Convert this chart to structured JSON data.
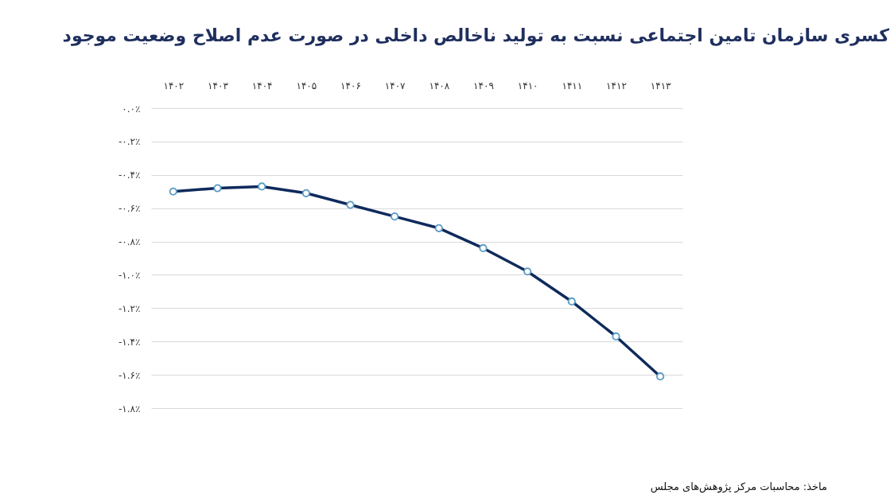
{
  "chart_data": {
    "type": "line",
    "title": "کسری سازمان تامین اجتماعی نسبت به تولید ناخالص داخلی در صورت عدم اصلاح وضعیت موجود",
    "categories": [
      "۱۴۰۲",
      "۱۴۰۳",
      "۱۴۰۴",
      "۱۴۰۵",
      "۱۴۰۶",
      "۱۴۰۷",
      "۱۴۰۸",
      "۱۴۰۹",
      "۱۴۱۰",
      "۱۴۱۱",
      "۱۴۱۲",
      "۱۴۱۳"
    ],
    "series": [
      {
        "color": "#0f2a5c",
        "values": [
          -0.5,
          -0.48,
          -0.47,
          -0.51,
          -0.58,
          -0.65,
          -0.72,
          -0.84,
          -0.98,
          -1.16,
          -1.37,
          -1.61
        ]
      }
    ],
    "ylim": [
      -1.8,
      0
    ],
    "yticks": [
      {
        "value": 0,
        "label": "۰.۰٪"
      },
      {
        "value": -0.2,
        "label": "-۰.۲٪"
      },
      {
        "value": -0.4,
        "label": "-۰.۴٪"
      },
      {
        "value": -0.6,
        "label": "-۰.۶٪"
      },
      {
        "value": -0.8,
        "label": "-۰.۸٪"
      },
      {
        "value": -1.0,
        "label": "-۱.۰٪"
      },
      {
        "value": -1.2,
        "label": "-۱.۲٪"
      },
      {
        "value": -1.4,
        "label": "-۱.۴٪"
      },
      {
        "value": -1.6,
        "label": "-۱.۶٪"
      },
      {
        "value": -1.8,
        "label": "-۱.۸٪"
      }
    ],
    "grid": "y",
    "marker": "circle",
    "line_style": "solid",
    "annotations": [
      "ماخذ: محاسبات مرکز پژوهش‌های مجلس"
    ]
  }
}
